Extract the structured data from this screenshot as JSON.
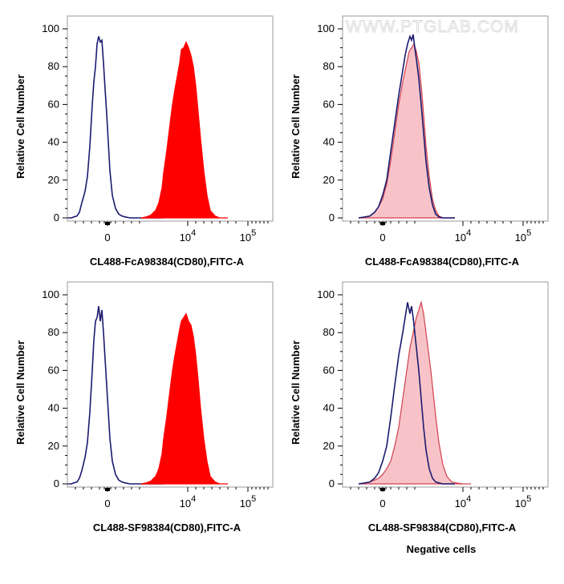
{
  "chart_data": [
    {
      "type": "area",
      "ylabel": "Relative Cell Number",
      "xlabel": "CL488-FcA98384(CD80),FITC-A",
      "ylim": [
        0,
        100
      ],
      "yticks": [
        "0",
        "20",
        "40",
        "60",
        "80",
        "100"
      ],
      "xticks": [
        {
          "base": "0",
          "exp": ""
        },
        {
          "base": "10",
          "exp": "4"
        },
        {
          "base": "10",
          "exp": "5"
        }
      ],
      "series": [
        {
          "style": "outline",
          "color": "#1a1a6e",
          "x": [
            0,
            5,
            8,
            12,
            15,
            18,
            22,
            25,
            28,
            31,
            33,
            35,
            37,
            39,
            41,
            43,
            45,
            47,
            49,
            51,
            53,
            56,
            60,
            64,
            68,
            72,
            78,
            85,
            92,
            100,
            120
          ],
          "y": [
            0,
            0,
            0.5,
            1,
            3,
            8,
            14,
            22,
            38,
            60,
            72,
            80,
            92,
            96,
            93,
            94,
            82,
            68,
            55,
            40,
            25,
            12,
            5,
            2,
            1,
            0.5,
            0,
            0,
            0,
            0,
            0
          ]
        },
        {
          "style": "filled",
          "color": "#ff0000",
          "x": [
            92,
            98,
            104,
            110,
            114,
            118,
            120,
            124,
            128,
            131,
            134,
            137,
            140,
            142,
            145,
            148,
            151,
            154,
            157,
            160,
            163,
            166,
            170,
            174,
            178,
            184,
            190,
            200
          ],
          "y": [
            0,
            0.5,
            1.5,
            4,
            8,
            16,
            24,
            36,
            50,
            60,
            68,
            75,
            82,
            89,
            90,
            93,
            90,
            86,
            80,
            70,
            56,
            42,
            25,
            12,
            4,
            1,
            0,
            0
          ]
        }
      ]
    },
    {
      "type": "area",
      "ylabel": "Relative Cell Number",
      "xlabel": "CL488-FcA98384(CD80),FITC-A",
      "ylim": [
        0,
        100
      ],
      "yticks": [
        "0",
        "20",
        "40",
        "60",
        "80",
        "100"
      ],
      "xticks": [
        {
          "base": "0",
          "exp": ""
        },
        {
          "base": "10",
          "exp": "4"
        },
        {
          "base": "10",
          "exp": "5"
        }
      ],
      "watermark": "WWW.PTGLAB.COM",
      "series": [
        {
          "style": "filled",
          "color": "#f7c3c8",
          "stroke": "#d0414c",
          "x": [
            20,
            28,
            34,
            40,
            45,
            50,
            55,
            60,
            65,
            70,
            75,
            80,
            83,
            86,
            89,
            92,
            95,
            98,
            101,
            104,
            108,
            112,
            116,
            120,
            125,
            130,
            140
          ],
          "y": [
            0,
            0.5,
            1,
            3,
            6,
            10,
            18,
            30,
            45,
            60,
            72,
            82,
            88,
            90,
            92,
            88,
            82,
            70,
            55,
            38,
            22,
            10,
            4,
            1,
            0,
            0,
            0
          ]
        },
        {
          "style": "outline",
          "color": "#1a1a6e",
          "x": [
            20,
            28,
            34,
            40,
            45,
            50,
            55,
            60,
            65,
            70,
            75,
            78,
            81,
            84,
            86,
            88,
            90,
            92,
            95,
            98,
            101,
            104,
            108,
            112,
            116,
            120,
            125,
            130,
            140
          ],
          "y": [
            0,
            0.5,
            1,
            3,
            6,
            12,
            20,
            35,
            50,
            65,
            78,
            86,
            92,
            96,
            94,
            97,
            90,
            84,
            74,
            60,
            45,
            30,
            16,
            7,
            2,
            0.5,
            0,
            0,
            0
          ]
        }
      ]
    },
    {
      "type": "area",
      "ylabel": "Relative Cell Number",
      "xlabel": "CL488-SF98384(CD80),FITC-A",
      "ylim": [
        0,
        100
      ],
      "yticks": [
        "0",
        "20",
        "40",
        "60",
        "80",
        "100"
      ],
      "xticks": [
        {
          "base": "0",
          "exp": ""
        },
        {
          "base": "10",
          "exp": "4"
        },
        {
          "base": "10",
          "exp": "5"
        }
      ],
      "series": [
        {
          "style": "outline",
          "color": "#1a1a6e",
          "x": [
            0,
            5,
            8,
            12,
            15,
            18,
            22,
            25,
            28,
            31,
            33,
            35,
            37,
            39,
            41,
            43,
            45,
            47,
            49,
            51,
            53,
            56,
            60,
            64,
            68,
            72,
            78,
            85,
            92,
            100,
            120
          ],
          "y": [
            0,
            0,
            0.5,
            1,
            3,
            7,
            14,
            22,
            38,
            60,
            76,
            86,
            88,
            94,
            86,
            92,
            80,
            66,
            52,
            38,
            24,
            12,
            5,
            2,
            1,
            0.5,
            0,
            0,
            0,
            0,
            0
          ]
        },
        {
          "style": "filled",
          "color": "#ff0000",
          "x": [
            92,
            98,
            104,
            110,
            114,
            118,
            120,
            124,
            128,
            131,
            134,
            137,
            140,
            142,
            145,
            148,
            151,
            154,
            157,
            160,
            163,
            166,
            170,
            174,
            178,
            184,
            190,
            200
          ],
          "y": [
            0,
            0.5,
            1.5,
            4,
            8,
            16,
            24,
            36,
            50,
            60,
            68,
            75,
            82,
            86,
            88,
            90,
            86,
            84,
            78,
            68,
            55,
            40,
            24,
            12,
            4,
            1,
            0,
            0
          ]
        }
      ]
    },
    {
      "type": "area",
      "ylabel": "Relative Cell Number",
      "xlabel": "CL488-SF98384(CD80),FITC-A",
      "ylim": [
        0,
        100
      ],
      "yticks": [
        "0",
        "20",
        "40",
        "60",
        "80",
        "100"
      ],
      "xticks": [
        {
          "base": "0",
          "exp": ""
        },
        {
          "base": "10",
          "exp": "4"
        },
        {
          "base": "10",
          "exp": "5"
        }
      ],
      "series": [
        {
          "style": "filled",
          "color": "#f7c3c8",
          "stroke": "#d0414c",
          "x": [
            20,
            28,
            34,
            40,
            45,
            50,
            55,
            60,
            65,
            70,
            75,
            80,
            84,
            88,
            92,
            95,
            98,
            101,
            104,
            107,
            110,
            113,
            116,
            120,
            125,
            130,
            136,
            142,
            150,
            160
          ],
          "y": [
            0,
            0.5,
            1,
            2,
            3,
            5,
            8,
            12,
            20,
            30,
            45,
            60,
            72,
            80,
            88,
            92,
            96,
            90,
            80,
            70,
            60,
            48,
            36,
            22,
            10,
            4,
            1,
            0.5,
            0,
            0
          ]
        },
        {
          "style": "outline",
          "color": "#1a1a6e",
          "x": [
            20,
            28,
            34,
            40,
            45,
            50,
            55,
            60,
            65,
            70,
            75,
            78,
            81,
            84,
            86,
            88,
            90,
            92,
            95,
            98,
            101,
            104,
            108,
            112,
            116,
            120,
            125,
            130,
            140
          ],
          "y": [
            0,
            0.5,
            1,
            3,
            6,
            12,
            20,
            35,
            52,
            68,
            80,
            88,
            96,
            90,
            94,
            88,
            80,
            72,
            60,
            45,
            30,
            18,
            8,
            3,
            1,
            0.5,
            0,
            0,
            0
          ]
        }
      ]
    }
  ],
  "footer": "Negative cells"
}
